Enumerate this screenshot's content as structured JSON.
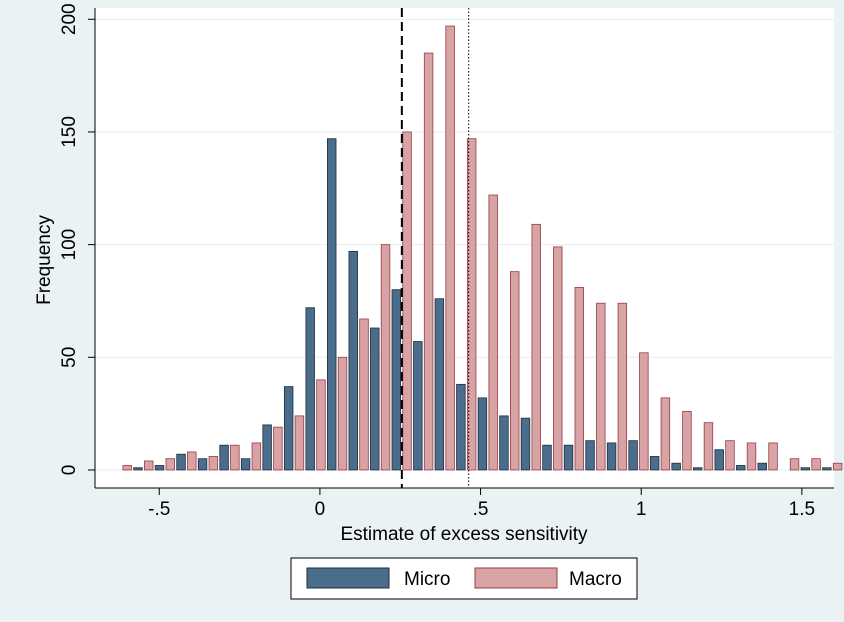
{
  "chart_data": {
    "type": "bar",
    "xlabel": "Estimate of excess sensitivity",
    "ylabel": "Frequency",
    "xlim": [
      -0.7,
      1.6
    ],
    "ylim": [
      -8,
      205
    ],
    "x_ticks": [
      {
        "value": -0.5,
        "label": "-.5"
      },
      {
        "value": 0,
        "label": "0"
      },
      {
        "value": 0.5,
        "label": ".5"
      },
      {
        "value": 1,
        "label": "1"
      },
      {
        "value": 1.5,
        "label": "1.5"
      }
    ],
    "y_ticks": [
      {
        "value": 0,
        "label": "0"
      },
      {
        "value": 50,
        "label": "50"
      },
      {
        "value": 100,
        "label": "100"
      },
      {
        "value": 150,
        "label": "150"
      },
      {
        "value": 200,
        "label": "200"
      }
    ],
    "grid": true,
    "legend_position": "bottom",
    "bin_width": 0.067,
    "bin_starts": [
      -0.65,
      -0.583,
      -0.516,
      -0.449,
      -0.382,
      -0.315,
      -0.248,
      -0.181,
      -0.114,
      -0.047,
      0.02,
      0.087,
      0.154,
      0.221,
      0.288,
      0.355,
      0.422,
      0.489,
      0.556,
      0.623,
      0.69,
      0.757,
      0.824,
      0.891,
      0.958,
      1.025,
      1.092,
      1.159,
      1.226,
      1.293,
      1.36,
      1.427,
      1.494,
      1.561
    ],
    "series": [
      {
        "name": "Micro",
        "color": "#4a6d8c",
        "values": [
          0,
          1,
          2,
          7,
          5,
          11,
          5,
          20,
          37,
          72,
          147,
          97,
          63,
          80,
          57,
          76,
          38,
          32,
          24,
          23,
          11,
          11,
          13,
          12,
          13,
          6,
          3,
          1,
          9,
          2,
          3,
          0,
          1,
          1
        ]
      },
      {
        "name": "Macro",
        "color": "#d8a3a5",
        "values": [
          2,
          4,
          5,
          8,
          6,
          11,
          12,
          19,
          24,
          40,
          50,
          67,
          100,
          150,
          185,
          197,
          147,
          122,
          88,
          109,
          99,
          81,
          74,
          74,
          52,
          32,
          26,
          21,
          13,
          12,
          12,
          5,
          5,
          3
        ]
      }
    ],
    "reference_lines": [
      {
        "x": 0.255,
        "style": "dashed"
      },
      {
        "x": 0.463,
        "style": "dotted"
      }
    ]
  }
}
